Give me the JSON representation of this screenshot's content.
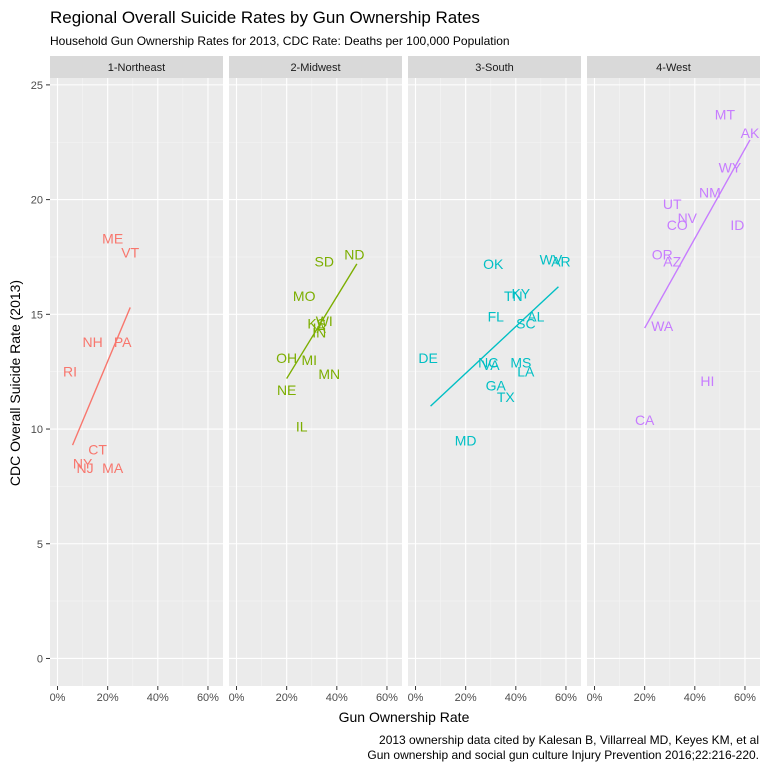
{
  "chart_data": {
    "type": "scatter",
    "title": "Regional Overall Suicide Rates by Gun Ownership Rates",
    "subtitle": "Household Gun Ownership Rates for 2013, CDC Rate: Deaths per 100,000 Population",
    "xlabel": "Gun Ownership Rate",
    "ylabel": "CDC Overall Suicide Rate (2013)",
    "caption_lines": [
      "2013 ownership data cited by Kalesan B, Villarreal MD, Keyes KM, et al",
      "Gun ownership and social gun culture Injury Prevention 2016;22:216-220."
    ],
    "xlim": [
      -0.03,
      0.66
    ],
    "ylim": [
      -1.2,
      25.3
    ],
    "x_ticks": [
      0,
      0.2,
      0.4,
      0.6
    ],
    "x_tick_labels": [
      "0%",
      "20%",
      "40%",
      "60%"
    ],
    "y_ticks": [
      0,
      5,
      10,
      15,
      20,
      25
    ],
    "y_tick_labels": [
      "0",
      "5",
      "10",
      "15",
      "20",
      "25"
    ],
    "grid": true,
    "facets": [
      {
        "label": "1-Northeast",
        "color": "#F8766D",
        "trend": {
          "x1": 0.06,
          "y1": 9.3,
          "x2": 0.29,
          "y2": 15.3
        },
        "points": [
          {
            "label": "ME",
            "x": 0.22,
            "y": 18.3
          },
          {
            "label": "VT",
            "x": 0.29,
            "y": 17.7
          },
          {
            "label": "NH",
            "x": 0.14,
            "y": 13.8
          },
          {
            "label": "PA",
            "x": 0.26,
            "y": 13.8
          },
          {
            "label": "RI",
            "x": 0.05,
            "y": 12.5
          },
          {
            "label": "CT",
            "x": 0.16,
            "y": 9.1
          },
          {
            "label": "NY",
            "x": 0.1,
            "y": 8.5
          },
          {
            "label": "NJ",
            "x": 0.11,
            "y": 8.3
          },
          {
            "label": "MA",
            "x": 0.22,
            "y": 8.3
          }
        ]
      },
      {
        "label": "2-Midwest",
        "color": "#7CAE00",
        "trend": {
          "x1": 0.2,
          "y1": 12.2,
          "x2": 0.48,
          "y2": 17.2
        },
        "points": [
          {
            "label": "ND",
            "x": 0.47,
            "y": 17.6
          },
          {
            "label": "SD",
            "x": 0.35,
            "y": 17.3
          },
          {
            "label": "MO",
            "x": 0.27,
            "y": 15.8
          },
          {
            "label": "KS",
            "x": 0.32,
            "y": 14.6
          },
          {
            "label": "WI",
            "x": 0.35,
            "y": 14.7
          },
          {
            "label": "IA",
            "x": 0.33,
            "y": 14.4
          },
          {
            "label": "IN",
            "x": 0.33,
            "y": 14.2
          },
          {
            "label": "OH",
            "x": 0.2,
            "y": 13.1
          },
          {
            "label": "MI",
            "x": 0.29,
            "y": 13.0
          },
          {
            "label": "MN",
            "x": 0.37,
            "y": 12.4
          },
          {
            "label": "NE",
            "x": 0.2,
            "y": 11.7
          },
          {
            "label": "IL",
            "x": 0.26,
            "y": 10.1
          }
        ]
      },
      {
        "label": "3-South",
        "color": "#00BFC4",
        "trend": {
          "x1": 0.06,
          "y1": 11.0,
          "x2": 0.57,
          "y2": 16.2
        },
        "points": [
          {
            "label": "OK",
            "x": 0.31,
            "y": 17.2
          },
          {
            "label": "WV",
            "x": 0.54,
            "y": 17.4
          },
          {
            "label": "AR",
            "x": 0.58,
            "y": 17.3
          },
          {
            "label": "TN",
            "x": 0.39,
            "y": 15.8
          },
          {
            "label": "KY",
            "x": 0.42,
            "y": 15.9
          },
          {
            "label": "FL",
            "x": 0.32,
            "y": 14.9
          },
          {
            "label": "AL",
            "x": 0.48,
            "y": 14.9
          },
          {
            "label": "SC",
            "x": 0.44,
            "y": 14.6
          },
          {
            "label": "DE",
            "x": 0.05,
            "y": 13.1
          },
          {
            "label": "NC",
            "x": 0.29,
            "y": 12.9
          },
          {
            "label": "VA",
            "x": 0.3,
            "y": 12.8
          },
          {
            "label": "MS",
            "x": 0.42,
            "y": 12.9
          },
          {
            "label": "LA",
            "x": 0.44,
            "y": 12.5
          },
          {
            "label": "GA",
            "x": 0.32,
            "y": 11.9
          },
          {
            "label": "TX",
            "x": 0.36,
            "y": 11.4
          },
          {
            "label": "MD",
            "x": 0.2,
            "y": 9.5
          }
        ]
      },
      {
        "label": "4-West",
        "color": "#C77CFF",
        "trend": {
          "x1": 0.2,
          "y1": 14.4,
          "x2": 0.62,
          "y2": 22.6
        },
        "points": [
          {
            "label": "MT",
            "x": 0.52,
            "y": 23.7
          },
          {
            "label": "AK",
            "x": 0.62,
            "y": 22.9
          },
          {
            "label": "WY",
            "x": 0.54,
            "y": 21.4
          },
          {
            "label": "NM",
            "x": 0.46,
            "y": 20.3
          },
          {
            "label": "UT",
            "x": 0.31,
            "y": 19.8
          },
          {
            "label": "NV",
            "x": 0.37,
            "y": 19.2
          },
          {
            "label": "CO",
            "x": 0.33,
            "y": 18.9
          },
          {
            "label": "ID",
            "x": 0.57,
            "y": 18.9
          },
          {
            "label": "OR",
            "x": 0.27,
            "y": 17.6
          },
          {
            "label": "AZ",
            "x": 0.31,
            "y": 17.3
          },
          {
            "label": "WA",
            "x": 0.27,
            "y": 14.5
          },
          {
            "label": "HI",
            "x": 0.45,
            "y": 12.1
          },
          {
            "label": "CA",
            "x": 0.2,
            "y": 10.4
          }
        ]
      }
    ]
  }
}
